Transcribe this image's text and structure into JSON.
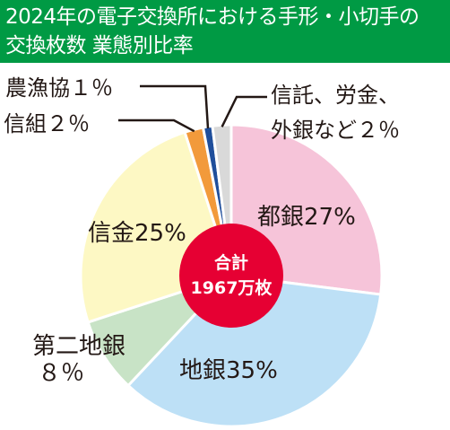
{
  "title": {
    "line1": "2024年の電子交換所における手形・小切手の",
    "line2": "交換枚数 業態別比率"
  },
  "colors": {
    "header": "#009a44",
    "center": "#e60033",
    "text": "#231815",
    "leader": "#231815"
  },
  "chart_data": {
    "type": "pie",
    "title": "2024年の電子交換所における手形・小切手の交換枚数 業態別比率",
    "center_label": [
      "合計",
      "1967万枚"
    ],
    "slices": [
      {
        "key": "toshigin",
        "label": "都銀27%",
        "value": 27,
        "color": "#f6c4d9"
      },
      {
        "key": "chigin",
        "label": "地銀35%",
        "value": 35,
        "color": "#bde0f6"
      },
      {
        "key": "daini",
        "label": "第二地銀\n８％",
        "value": 8,
        "color": "#c8e3c6"
      },
      {
        "key": "shinkin",
        "label": "信金25%",
        "value": 25,
        "color": "#fdf8c4"
      },
      {
        "key": "shinkumi",
        "label": "信組２％",
        "value": 2,
        "color": "#f29a3b"
      },
      {
        "key": "nogyo",
        "label": "農漁協１％",
        "value": 1,
        "color": "#1f4e9b"
      },
      {
        "key": "other",
        "label": "信託、労金、\n外銀など２％",
        "value": 2,
        "color": "#d9d9d9"
      }
    ]
  }
}
